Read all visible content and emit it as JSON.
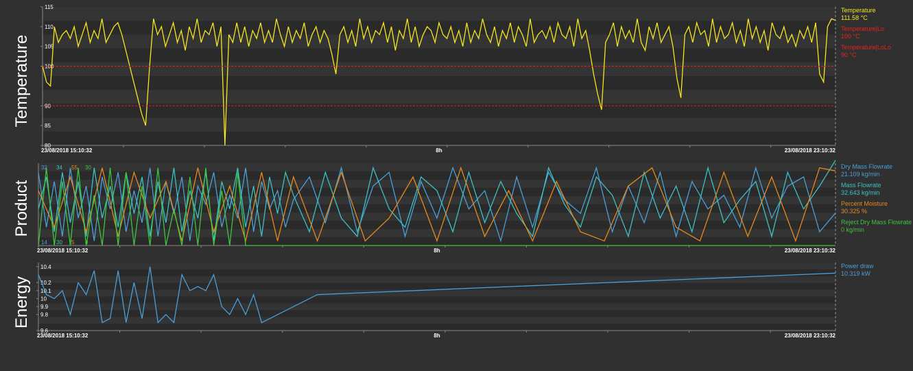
{
  "chart_data": [
    {
      "type": "line",
      "panel": "Temperature",
      "ylim": [
        80,
        115
      ],
      "yticks": [
        80,
        85,
        90,
        100,
        105,
        110,
        115
      ],
      "xlabels": {
        "start": "23/08/2018 15:10:32",
        "mid": "8h",
        "end": "23/08/2018 23:10:32"
      },
      "series": [
        {
          "name": "Temperature",
          "readout": "111.58 °C",
          "color": "#f5e61e",
          "x": [
            0,
            0.5,
            1,
            1.5,
            2,
            2.5,
            3,
            3.5,
            4,
            4.5,
            5,
            5.5,
            6,
            6.5,
            7,
            7.5,
            8,
            8.5,
            9,
            9.5,
            10,
            10.5,
            11,
            11.5,
            12,
            12.5,
            13,
            13.5,
            14,
            14.5,
            15,
            15.5,
            16,
            16.5,
            17,
            17.5,
            18,
            18.5,
            19,
            19.5,
            20,
            20.5,
            21,
            21.5,
            22,
            22.5,
            23,
            23.5,
            24,
            24.5,
            25,
            25.5,
            26,
            26.5,
            27,
            27.5,
            28,
            28.5,
            29,
            29.5,
            30,
            30.5,
            31,
            31.5,
            32,
            32.5,
            33,
            33.5,
            34,
            34.5,
            35,
            35.5,
            36,
            36.5,
            37,
            37.5,
            38,
            38.5,
            39,
            39.5,
            40,
            40.5,
            41,
            41.5,
            42,
            42.5,
            43,
            43.5,
            44,
            44.5,
            45,
            45.5,
            46,
            46.5,
            47,
            47.5,
            48,
            48.5,
            49,
            49.5,
            50,
            50.5,
            51,
            51.5,
            52,
            52.5,
            53,
            53.5,
            54,
            54.5,
            55,
            55.5,
            56,
            56.5,
            57,
            57.5,
            58,
            58.5,
            59,
            59.5,
            60,
            60.5,
            61,
            61.5,
            62,
            62.5,
            63,
            63.5,
            64,
            64.5,
            65,
            65.5,
            66,
            66.5,
            67,
            67.5,
            68,
            68.5,
            69,
            69.5,
            70,
            70.5,
            71,
            71.5,
            72,
            72.5,
            73,
            73.5,
            74,
            74.5,
            75,
            75.5,
            76,
            76.5,
            77,
            77.5,
            78,
            78.5,
            79,
            79.5,
            80,
            80.5,
            81,
            81.5,
            82,
            82.5,
            83,
            83.5,
            84,
            84.5,
            85,
            85.5,
            86,
            86.5,
            87,
            87.5,
            88,
            88.5,
            89,
            89.5,
            90,
            90.5,
            91,
            91.5,
            92,
            92.5,
            93,
            93.5,
            94,
            94.5,
            95,
            95.5,
            96,
            96.5,
            97,
            97.5,
            98,
            98.5,
            99,
            99.5,
            100
          ],
          "y": [
            100,
            96,
            95,
            110,
            106,
            108,
            109,
            107,
            110,
            105,
            108,
            111,
            106,
            109,
            107,
            112,
            106,
            108,
            110,
            111,
            108,
            104,
            100,
            96,
            92,
            88,
            85,
            100,
            112,
            108,
            110,
            105,
            108,
            111,
            106,
            109,
            104,
            110,
            107,
            112,
            106,
            109,
            108,
            111,
            105,
            110,
            80,
            108,
            106,
            111,
            106,
            110,
            105,
            109,
            107,
            111,
            106,
            109,
            106,
            112,
            108,
            105,
            110,
            106,
            109,
            107,
            111,
            105,
            108,
            110,
            106,
            109,
            107,
            103,
            98,
            108,
            110,
            106,
            109,
            105,
            112,
            107,
            110,
            106,
            109,
            108,
            111,
            106,
            110,
            104,
            109,
            107,
            112,
            106,
            110,
            105,
            108,
            110,
            109,
            106,
            111,
            108,
            107,
            110,
            106,
            109,
            105,
            111,
            106,
            109,
            107,
            112,
            108,
            106,
            110,
            105,
            109,
            107,
            111,
            106,
            110,
            108,
            105,
            112,
            106,
            108,
            109,
            107,
            110,
            106,
            111,
            108,
            107,
            110,
            105,
            112,
            107,
            109,
            104,
            98,
            93,
            89,
            106,
            108,
            111,
            105,
            110,
            107,
            109,
            106,
            112,
            106,
            104,
            110,
            107,
            111,
            106,
            108,
            110,
            105,
            97,
            92,
            108,
            110,
            106,
            111,
            108,
            109,
            105,
            112,
            106,
            110,
            107,
            108,
            111,
            106,
            109,
            105,
            112,
            107,
            110,
            106,
            109,
            104,
            111,
            108,
            107,
            110,
            106,
            108,
            105,
            109,
            107,
            110,
            106,
            111,
            98,
            96,
            110,
            112,
            111.58
          ]
        },
        {
          "name": "Temperature|Lo",
          "readout": "100 °C",
          "color": "#e8201c",
          "x": [
            0,
            100
          ],
          "y": [
            100,
            100
          ]
        },
        {
          "name": "Temperature|LoLo",
          "readout": "90 °C",
          "color": "#e8201c",
          "x": [
            0,
            100
          ],
          "y": [
            90,
            90
          ]
        }
      ]
    },
    {
      "type": "line",
      "panel": "Product",
      "ylim": [
        14,
        32
      ],
      "yticks": [],
      "corner_labels": {
        "top": [
          "32",
          "34",
          "55",
          "30"
        ],
        "bottom": [
          "14",
          "30",
          "5",
          "0"
        ]
      },
      "xlabels": {
        "start": "23/08/2018 15:10:32",
        "mid": "8h",
        "end": "23/08/2018 23:10:32"
      },
      "series": [
        {
          "name": "Dry Mass Flowrate",
          "readout": "21.109 kg/min",
          "color": "#4a9fd8",
          "x": [
            0,
            1,
            2,
            3,
            4,
            5,
            6,
            7,
            8,
            9,
            10,
            11,
            12,
            13,
            14,
            15,
            16,
            17,
            18,
            19,
            20,
            21,
            22,
            23,
            24,
            25,
            26,
            27,
            28,
            29,
            30,
            31,
            32,
            34,
            36,
            38,
            40,
            42,
            44,
            46,
            48,
            50,
            52,
            54,
            56,
            58,
            60,
            62,
            64,
            66,
            68,
            70,
            72,
            74,
            76,
            78,
            80,
            82,
            84,
            86,
            88,
            90,
            92,
            94,
            96,
            98,
            100
          ],
          "y": [
            30,
            18,
            28,
            16,
            31,
            20,
            27,
            15,
            29,
            22,
            30,
            17,
            26,
            19,
            31,
            16,
            28,
            21,
            29,
            15,
            27,
            23,
            30,
            18,
            25,
            20,
            31,
            17,
            28,
            22,
            26,
            18,
            24,
            29,
            19,
            31,
            17,
            27,
            30,
            16,
            28,
            20,
            31,
            22,
            26,
            15,
            29,
            18,
            30,
            24,
            21,
            31,
            17,
            27,
            19,
            30,
            16,
            28,
            22,
            25,
            18,
            31,
            20,
            27,
            29,
            17,
            21.109
          ]
        },
        {
          "name": "Mass Flowrate",
          "readout": "32.643 kg/min",
          "color": "#3ec0c4",
          "x": [
            0,
            1,
            2,
            3,
            4,
            5,
            6,
            7,
            8,
            9,
            10,
            11,
            12,
            13,
            14,
            15,
            16,
            17,
            18,
            19,
            20,
            21,
            22,
            23,
            24,
            25,
            26,
            27,
            28,
            29,
            30,
            31,
            32,
            34,
            36,
            38,
            40,
            42,
            44,
            46,
            48,
            50,
            52,
            54,
            56,
            58,
            60,
            62,
            64,
            66,
            68,
            70,
            72,
            74,
            76,
            78,
            80,
            82,
            84,
            86,
            88,
            90,
            92,
            94,
            96,
            98,
            100
          ],
          "y": [
            22,
            29,
            17,
            30,
            19,
            28,
            16,
            31,
            20,
            27,
            18,
            30,
            21,
            29,
            16,
            28,
            19,
            31,
            17,
            26,
            20,
            30,
            15,
            28,
            22,
            31,
            18,
            27,
            16,
            29,
            21,
            30,
            25,
            17,
            30,
            20,
            16,
            31,
            22,
            18,
            29,
            26,
            17,
            30,
            19,
            28,
            21,
            16,
            31,
            23,
            18,
            29,
            25,
            16,
            30,
            20,
            27,
            17,
            31,
            19,
            24,
            28,
            16,
            30,
            22,
            27,
            32.643
          ]
        },
        {
          "name": "Percent Moisture",
          "readout": "30.325 %",
          "color": "#e8891c",
          "x": [
            0,
            2,
            4,
            6,
            8,
            10,
            12,
            14,
            16,
            18,
            20,
            22,
            24,
            26,
            28,
            30,
            32,
            35,
            38,
            41,
            44,
            47,
            50,
            53,
            56,
            59,
            62,
            65,
            68,
            71,
            74,
            77,
            80,
            83,
            86,
            89,
            92,
            95,
            98,
            100
          ],
          "y": [
            26,
            18,
            29,
            17,
            31,
            16,
            30,
            20,
            28,
            15,
            31,
            17,
            27,
            15,
            30,
            15,
            29,
            15,
            30,
            15,
            20,
            29,
            15,
            31,
            16,
            26,
            15,
            28,
            17,
            15,
            27,
            31,
            18,
            15,
            30,
            16,
            29,
            15,
            31,
            30.325
          ]
        },
        {
          "name": "Reject Dry Mass Flowrate",
          "readout": "0 kg/min",
          "color": "#3ec43e",
          "x": [
            0,
            1,
            2,
            3,
            4,
            5,
            6,
            7,
            8,
            9,
            10,
            11,
            12,
            13,
            14,
            15,
            16,
            17,
            18,
            19,
            20,
            21,
            22,
            23,
            24,
            25,
            26,
            27,
            28,
            30,
            100
          ],
          "y": [
            14,
            31,
            14,
            28,
            14,
            31,
            14,
            25,
            14,
            31,
            14,
            30,
            14,
            27,
            14,
            31,
            14,
            22,
            14,
            29,
            14,
            31,
            14,
            26,
            14,
            30,
            14,
            14,
            14,
            14,
            14
          ]
        }
      ]
    },
    {
      "type": "line",
      "panel": "Energy",
      "ylim": [
        9.6,
        10.45
      ],
      "yticks": [
        9.6,
        9.8,
        9.9,
        10,
        10.1,
        10.2,
        10.4
      ],
      "xlabels": {
        "start": "23/08/2018 15:10:32",
        "mid": "8h",
        "end": "23/08/2018 23:10:32"
      },
      "series": [
        {
          "name": "Power draw",
          "readout": "10.319 kW",
          "color": "#4a9fd8",
          "x": [
            0,
            1,
            2,
            3,
            4,
            5,
            6,
            7,
            8,
            9,
            10,
            11,
            12,
            13,
            14,
            15,
            16,
            17,
            18,
            19,
            20,
            21,
            22,
            23,
            24,
            25,
            26,
            27,
            28,
            35,
            100
          ],
          "y": [
            10.3,
            10.05,
            10.0,
            10.1,
            9.8,
            10.2,
            10.05,
            10.35,
            9.7,
            9.75,
            10.35,
            9.7,
            10.2,
            9.75,
            10.4,
            9.7,
            9.8,
            9.7,
            10.3,
            10.1,
            10.15,
            10.1,
            10.3,
            9.9,
            9.8,
            10.0,
            9.8,
            10.05,
            9.7,
            10.05,
            10.319
          ]
        }
      ]
    }
  ],
  "titles": {
    "temperature": "Temperature",
    "product": "Product",
    "energy": "Energy"
  }
}
